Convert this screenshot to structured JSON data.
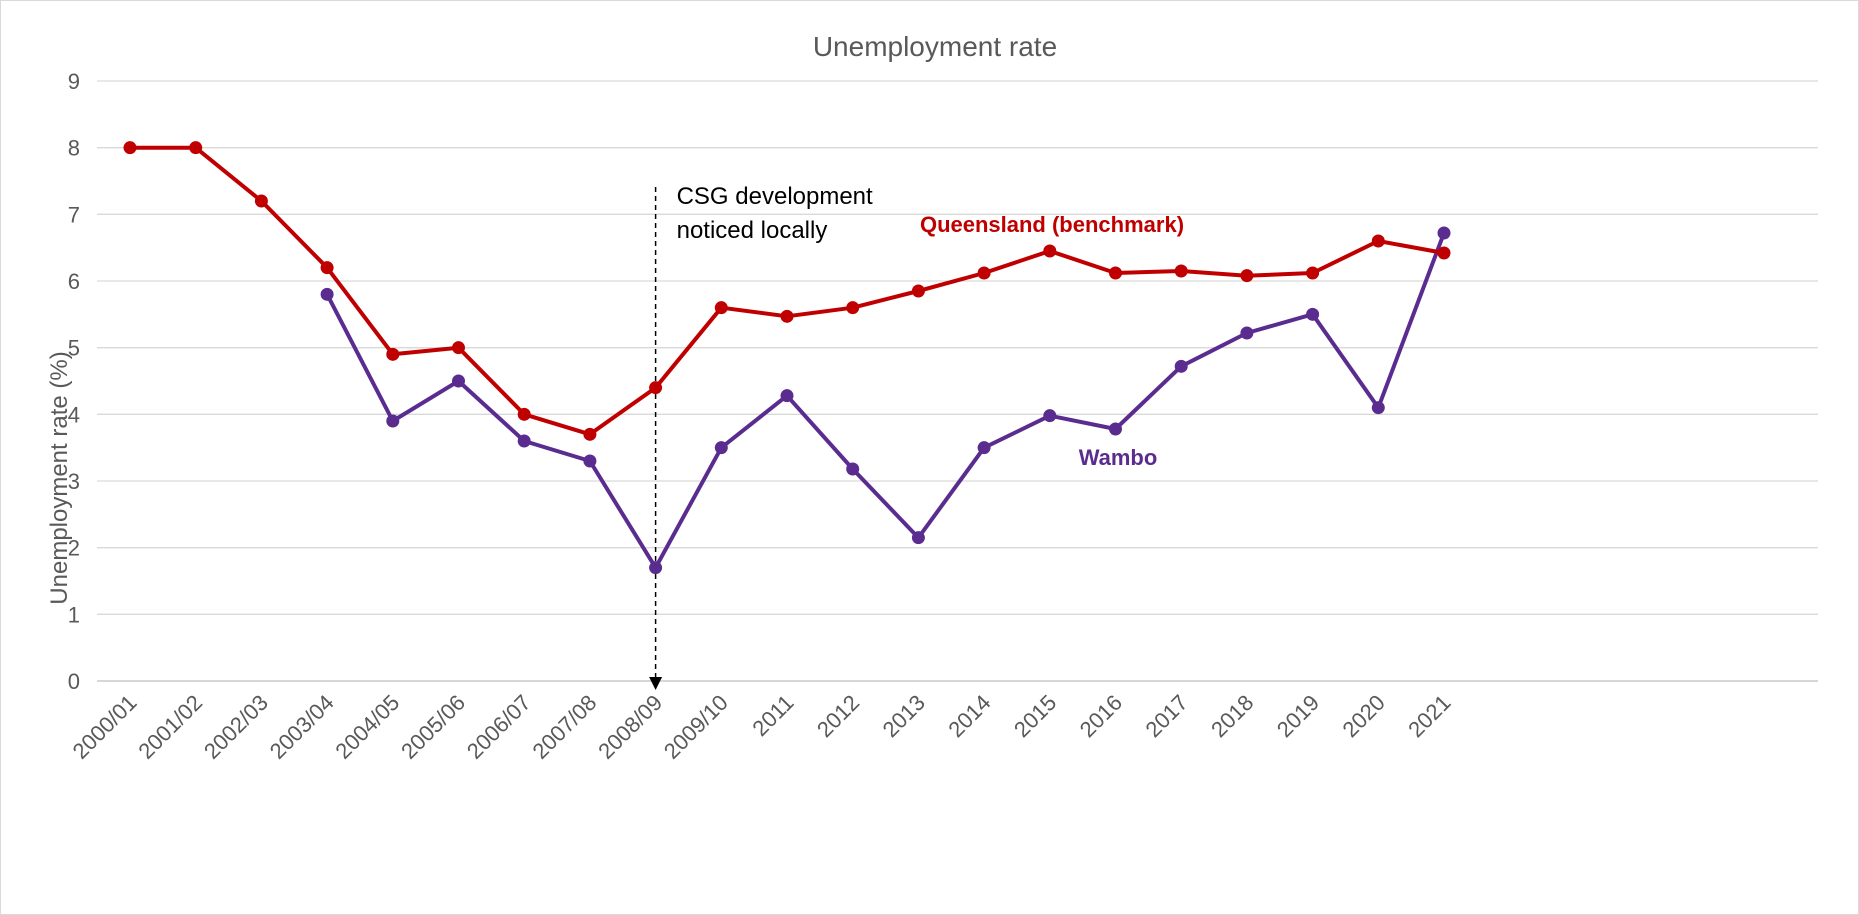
{
  "chart_data": {
    "type": "line",
    "title": "Unemployment rate",
    "ylabel": "Unemployment rate (%)",
    "xlabel": "",
    "ylim": [
      0,
      9
    ],
    "yticks": [
      "0",
      "1",
      "2",
      "3",
      "4",
      "5",
      "6",
      "7",
      "8",
      "9"
    ],
    "grid": true,
    "categories": [
      "2000/01",
      "2001/02",
      "2002/03",
      "2003/04",
      "2004/05",
      "2005/06",
      "2006/07",
      "2007/08",
      "2008/09",
      "2009/10",
      "2011",
      "2012",
      "2013",
      "2014",
      "2015",
      "2016",
      "2017",
      "2018",
      "2019",
      "2020",
      "2021"
    ],
    "series": [
      {
        "name": "Queensland (benchmark)",
        "color": "#C00000",
        "values": [
          8.0,
          8.0,
          7.2,
          6.2,
          4.9,
          5.0,
          4.0,
          3.7,
          4.4,
          5.6,
          5.47,
          5.6,
          5.85,
          6.12,
          6.45,
          6.12,
          6.15,
          6.08,
          6.12,
          6.6,
          6.42
        ]
      },
      {
        "name": "Wambo",
        "color": "#5B2C8F",
        "values": [
          null,
          null,
          null,
          5.8,
          3.9,
          4.5,
          3.6,
          3.3,
          1.7,
          3.5,
          4.28,
          3.18,
          2.15,
          3.5,
          3.98,
          3.78,
          4.72,
          5.22,
          5.5,
          4.1,
          6.72
        ]
      }
    ],
    "annotation": {
      "lines": [
        "CSG development",
        "noticed locally"
      ],
      "category": "2008/09"
    }
  }
}
